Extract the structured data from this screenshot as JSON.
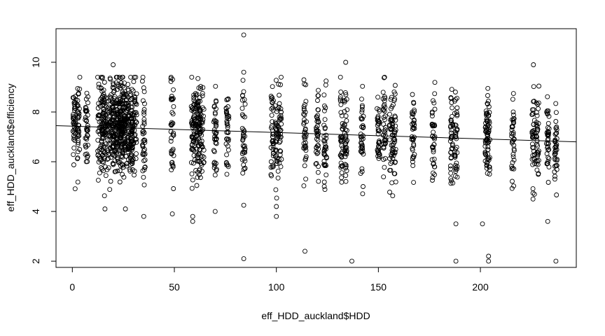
{
  "chart_data": {
    "type": "scatter",
    "xlabel": "eff_HDD_auckland$HDD",
    "ylabel": "eff_HDD_auckland$efficiency",
    "xlim": [
      -8,
      247
    ],
    "ylim": [
      1.75,
      11.35
    ],
    "x_ticks": [
      0,
      50,
      100,
      150,
      200
    ],
    "y_ticks": [
      2,
      4,
      6,
      8,
      10
    ],
    "x_tick_labels": [
      "0",
      "50",
      "100",
      "150",
      "200"
    ],
    "y_tick_labels": [
      "2",
      "4",
      "6",
      "8",
      "10"
    ],
    "grid": false,
    "legend": "none",
    "marker": "open-circle",
    "x_positions": [
      1,
      3,
      7,
      14,
      16,
      19,
      21,
      23,
      24,
      26,
      28,
      30,
      35,
      49,
      59,
      61,
      63,
      70,
      76,
      84,
      98,
      101,
      114,
      120,
      124,
      132,
      134,
      142,
      150,
      153,
      157,
      167,
      177,
      186,
      188,
      203,
      204,
      216,
      226,
      228,
      233,
      237
    ],
    "points": [
      {
        "x": 84,
        "y": 11.1
      },
      {
        "x": 84,
        "y": 9.6
      },
      {
        "x": 84,
        "y": 4.25
      },
      {
        "x": 84,
        "y": 2.1
      },
      {
        "x": 20,
        "y": 9.9
      },
      {
        "x": 134,
        "y": 10.0
      },
      {
        "x": 226,
        "y": 9.9
      },
      {
        "x": 114,
        "y": 2.4
      },
      {
        "x": 137,
        "y": 2.0
      },
      {
        "x": 188,
        "y": 2.0
      },
      {
        "x": 204,
        "y": 2.2
      },
      {
        "x": 204,
        "y": 2.0
      },
      {
        "x": 237,
        "y": 2.0
      },
      {
        "x": 49,
        "y": 3.9
      },
      {
        "x": 59,
        "y": 3.8
      },
      {
        "x": 59,
        "y": 3.6
      },
      {
        "x": 70,
        "y": 4.0
      },
      {
        "x": 100,
        "y": 4.2
      },
      {
        "x": 100,
        "y": 3.8
      },
      {
        "x": 188,
        "y": 3.5
      },
      {
        "x": 201,
        "y": 3.5
      },
      {
        "x": 233,
        "y": 3.6
      },
      {
        "x": 26,
        "y": 4.1
      },
      {
        "x": 16,
        "y": 4.1
      },
      {
        "x": 35,
        "y": 3.8
      }
    ],
    "fit_line": {
      "x": [
        -8,
        247
      ],
      "y": [
        7.45,
        6.8
      ]
    }
  }
}
